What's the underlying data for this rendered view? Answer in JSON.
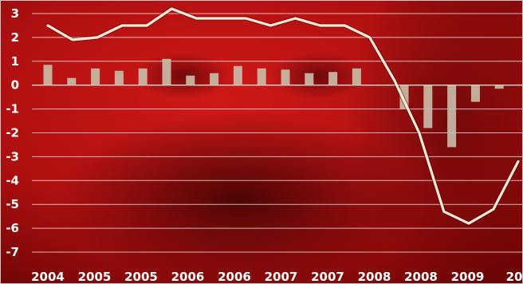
{
  "chart_data": {
    "type": "bar",
    "title": "",
    "xlabel": "",
    "ylabel": "",
    "ylim": [
      -7,
      3
    ],
    "y_ticks": [
      "3",
      "2",
      "1",
      "0",
      "-1",
      "-2",
      "-3",
      "-4",
      "-5",
      "-6",
      "-7"
    ],
    "x_tick_labels": [
      "2004",
      "2005",
      "2005",
      "2006",
      "2006",
      "2007",
      "2007",
      "2008",
      "2008",
      "2009",
      "20"
    ],
    "grid": true,
    "series": [
      {
        "type": "bar",
        "values": [
          0.85,
          0.3,
          0.7,
          0.6,
          0.7,
          1.1,
          0.4,
          0.5,
          0.8,
          0.7,
          0.65,
          0.5,
          0.55,
          0.7,
          0.0,
          -1.0,
          -1.8,
          -2.6,
          -0.7,
          -0.15,
          0.0
        ]
      },
      {
        "type": "line",
        "values": [
          2.5,
          1.9,
          2.0,
          2.5,
          2.5,
          3.2,
          2.8,
          2.8,
          2.8,
          2.5,
          2.8,
          2.5,
          2.5,
          2.0,
          0.2,
          -2.0,
          -5.3,
          -5.8,
          -5.2,
          -3.2
        ]
      }
    ],
    "colors": {
      "bars": "#c9bba6",
      "line": "#f0ead8",
      "grid": "#ffffff",
      "background": "#b01212"
    }
  }
}
